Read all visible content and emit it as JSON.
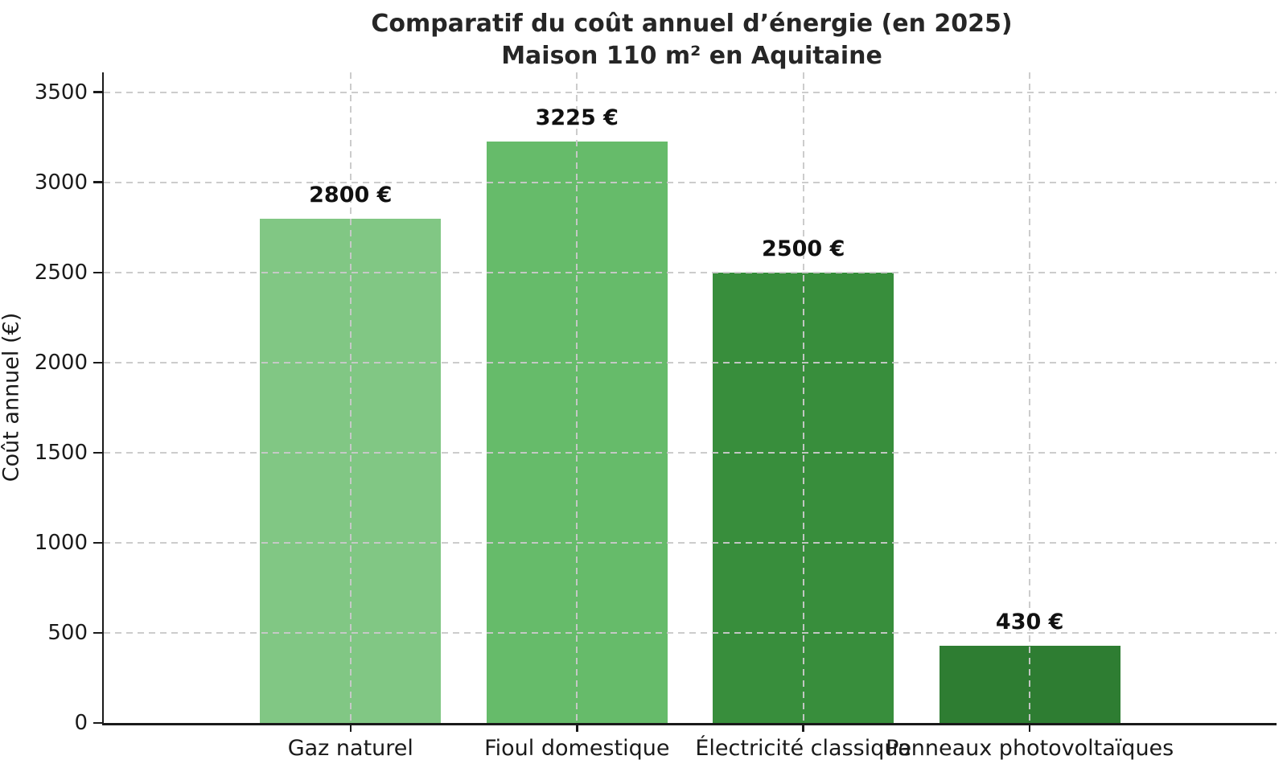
{
  "chart_data": {
    "type": "bar",
    "title": "Comparatif du coût annuel d’énergie (en 2025)",
    "subtitle": "Maison 110 m² en Aquitaine",
    "ylabel": "Coût annuel (€)",
    "xlabel": "",
    "categories": [
      "Gaz naturel",
      "Fioul domestique",
      "Électricité classique",
      "Panneaux photovoltaïques"
    ],
    "values": [
      2800,
      3225,
      2500,
      430
    ],
    "value_labels": [
      "2800 €",
      "3225 €",
      "2500 €",
      "430 €"
    ],
    "bar_colors": [
      "#81c784",
      "#66bb6a",
      "#388e3c",
      "#2e7d32"
    ],
    "yticks": [
      0,
      500,
      1000,
      1500,
      2000,
      2500,
      3000,
      3500
    ],
    "ylim": [
      0,
      3610
    ],
    "bar_width_fraction": 0.8,
    "x_margin_units": 0.59,
    "grid": {
      "horizontal": true,
      "vertical": true,
      "style": "dashed",
      "color": "#c9c9c9",
      "drawn_above_bars": true
    },
    "legend_position": "none",
    "colors": {
      "background": "#ffffff",
      "spine": "#1a1a1a",
      "title_text": "#262626",
      "tick_text": "#1a1a1a",
      "value_label_text": "#111111"
    }
  }
}
